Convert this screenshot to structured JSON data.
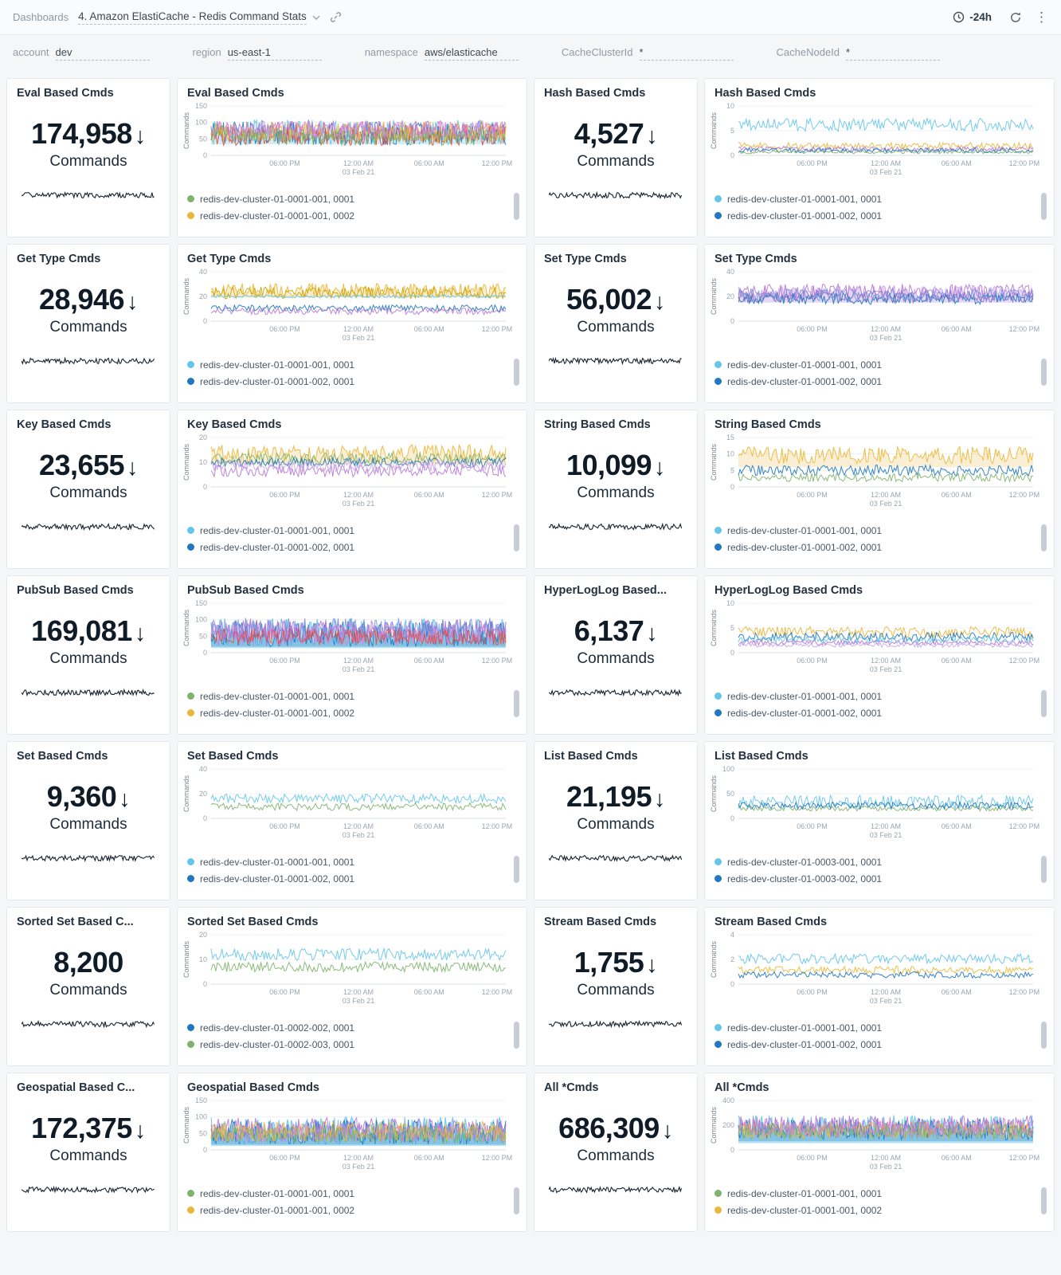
{
  "header": {
    "breadcrumb": "Dashboards",
    "title": "4. Amazon ElastiCache - Redis Command Stats",
    "time_range": "-24h",
    "icons": [
      "chevron-down",
      "link",
      "clock",
      "refresh",
      "kebab-menu"
    ]
  },
  "filters": [
    {
      "label": "account",
      "value": "dev"
    },
    {
      "label": "region",
      "value": "us-east-1"
    },
    {
      "label": "namespace",
      "value": "aws/elasticache"
    },
    {
      "label": "CacheClusterId",
      "value": "*"
    },
    {
      "label": "CacheNodeId",
      "value": "*"
    }
  ],
  "palette": {
    "green": "#7EB26D",
    "yellow": "#EAB839",
    "darkyellow": "#CCA300",
    "lightblue": "#65C5EA",
    "blue": "#1F78C1",
    "purple": "#B877D9",
    "darkpurple": "#8E6BBF",
    "lavender": "#C7A8E8",
    "pink": "#D683CE",
    "periwinkle": "#7B93DB",
    "red": "#E24D42",
    "spark": "#16222E"
  },
  "xticks": [
    {
      "label": "06:00 PM",
      "pos": 0.25
    },
    {
      "label": "12:00 AM",
      "sub": "03 Feb 21",
      "pos": 0.5
    },
    {
      "label": "06:00 AM",
      "pos": 0.74
    },
    {
      "label": "12:00 PM",
      "pos": 0.97
    }
  ],
  "panels": [
    {
      "type": "stat",
      "title": "Eval Based Cmds",
      "value": "174,958",
      "arrow": true,
      "unit": "Commands"
    },
    {
      "type": "chart",
      "title": "Eval Based Cmds",
      "ylabel": "Commands",
      "yticks": [
        0,
        50,
        100,
        150
      ],
      "ymax": 150,
      "dense": true,
      "legend": [
        {
          "color": "green",
          "label": "redis-dev-cluster-01-0001-001, 0001"
        },
        {
          "color": "yellow",
          "label": "redis-dev-cluster-01-0001-001, 0002"
        }
      ],
      "series": [
        {
          "color": "lightblue",
          "base": 70,
          "amp": 38,
          "fillTo": 34,
          "fillOpacity": 0.3
        },
        {
          "color": "blue",
          "base": 66,
          "amp": 36
        },
        {
          "color": "purple",
          "base": 74,
          "amp": 32
        },
        {
          "color": "red",
          "base": 60,
          "amp": 30
        },
        {
          "color": "yellow",
          "base": 70,
          "amp": 32
        },
        {
          "color": "green",
          "base": 56,
          "amp": 26
        },
        {
          "color": "pink",
          "base": 80,
          "amp": 26
        }
      ]
    },
    {
      "type": "stat",
      "title": "Hash Based Cmds",
      "value": "4,527",
      "arrow": true,
      "unit": "Commands"
    },
    {
      "type": "chart",
      "title": "Hash Based Cmds",
      "ylabel": "Commands",
      "yticks": [
        0,
        5,
        10
      ],
      "ymax": 10,
      "legend": [
        {
          "color": "lightblue",
          "label": "redis-dev-cluster-01-0001-001, 0001"
        },
        {
          "color": "blue",
          "label": "redis-dev-cluster-01-0001-002, 0001"
        }
      ],
      "series": [
        {
          "color": "lightblue",
          "base": 6.2,
          "amp": 1.3
        },
        {
          "color": "yellow",
          "base": 1.9,
          "amp": 0.7
        },
        {
          "color": "purple",
          "base": 1.3,
          "amp": 0.5
        },
        {
          "color": "blue",
          "base": 1.0,
          "amp": 0.5
        },
        {
          "color": "green",
          "base": 0.7,
          "amp": 0.35
        }
      ]
    },
    {
      "type": "stat",
      "title": "Get Type Cmds",
      "value": "28,946",
      "arrow": true,
      "unit": "Commands"
    },
    {
      "type": "chart",
      "title": "Get Type Cmds",
      "ylabel": "Commands",
      "yticks": [
        0,
        20,
        40
      ],
      "ymax": 40,
      "legend": [
        {
          "color": "lightblue",
          "label": "redis-dev-cluster-01-0001-001, 0001"
        },
        {
          "color": "blue",
          "label": "redis-dev-cluster-01-0001-002, 0001"
        }
      ],
      "series": [
        {
          "color": "yellow",
          "base": 25,
          "amp": 5.5,
          "fillTo": 19,
          "fillOpacity": 0.25
        },
        {
          "color": "darkyellow",
          "base": 23,
          "amp": 5
        },
        {
          "color": "lightblue",
          "base": 20,
          "amp": 1.2
        },
        {
          "color": "blue",
          "base": 10.5,
          "amp": 2.6
        },
        {
          "color": "purple",
          "base": 8,
          "amp": 2.6
        }
      ]
    },
    {
      "type": "stat",
      "title": "Set Type Cmds",
      "value": "56,002",
      "arrow": true,
      "unit": "Commands"
    },
    {
      "type": "chart",
      "title": "Set Type Cmds",
      "ylabel": "Commands",
      "yticks": [
        0,
        20,
        40
      ],
      "ymax": 40,
      "legend": [
        {
          "color": "lightblue",
          "label": "redis-dev-cluster-01-0001-001, 0001"
        },
        {
          "color": "blue",
          "label": "redis-dev-cluster-01-0001-002, 0001"
        }
      ],
      "series": [
        {
          "color": "lavender",
          "base": 23,
          "amp": 6,
          "fillTo": 15,
          "fillOpacity": 0.45
        },
        {
          "color": "purple",
          "base": 24,
          "amp": 6
        },
        {
          "color": "darkpurple",
          "base": 20,
          "amp": 5
        },
        {
          "color": "blue",
          "base": 18,
          "amp": 4.5
        },
        {
          "color": "periwinkle",
          "base": 21,
          "amp": 5
        }
      ]
    },
    {
      "type": "stat",
      "title": "Key Based Cmds",
      "value": "23,655",
      "arrow": true,
      "unit": "Commands"
    },
    {
      "type": "chart",
      "title": "Key Based Cmds",
      "ylabel": "Commands",
      "yticks": [
        0,
        10,
        20
      ],
      "ymax": 20,
      "legend": [
        {
          "color": "lightblue",
          "label": "redis-dev-cluster-01-0001-001, 0001"
        },
        {
          "color": "blue",
          "label": "redis-dev-cluster-01-0001-002, 0001"
        }
      ],
      "series": [
        {
          "color": "yellow",
          "base": 13.5,
          "amp": 3.6,
          "fillTo": 9,
          "fillOpacity": 0.22
        },
        {
          "color": "green",
          "base": 11.5,
          "amp": 2.2
        },
        {
          "color": "blue",
          "base": 10,
          "amp": 1.8
        },
        {
          "color": "purple",
          "base": 6.6,
          "amp": 2.6
        },
        {
          "color": "lavender",
          "base": 8.5,
          "amp": 2.2
        }
      ]
    },
    {
      "type": "stat",
      "title": "String Based Cmds",
      "value": "10,099",
      "arrow": true,
      "unit": "Commands"
    },
    {
      "type": "chart",
      "title": "String Based Cmds",
      "ylabel": "Commands",
      "yticks": [
        0,
        5,
        10,
        15
      ],
      "ymax": 15,
      "legend": [
        {
          "color": "lightblue",
          "label": "redis-dev-cluster-01-0001-001, 0001"
        },
        {
          "color": "blue",
          "label": "redis-dev-cluster-01-0001-002, 0001"
        }
      ],
      "series": [
        {
          "color": "yellow",
          "base": 9.6,
          "amp": 2.6,
          "fillTo": 6,
          "fillOpacity": 0.22
        },
        {
          "color": "blue",
          "base": 5,
          "amp": 1.6
        },
        {
          "color": "green",
          "base": 2.9,
          "amp": 1.3
        }
      ]
    },
    {
      "type": "stat",
      "title": "PubSub Based Cmds",
      "value": "169,081",
      "arrow": true,
      "unit": "Commands"
    },
    {
      "type": "chart",
      "title": "PubSub Based Cmds",
      "ylabel": "Commands",
      "yticks": [
        0,
        50,
        100,
        150
      ],
      "ymax": 150,
      "dense": true,
      "legend": [
        {
          "color": "green",
          "label": "redis-dev-cluster-01-0001-001, 0001"
        },
        {
          "color": "yellow",
          "label": "redis-dev-cluster-01-0001-001, 0002"
        }
      ],
      "series": [
        {
          "color": "lightblue",
          "base": 62,
          "amp": 42,
          "fillTo": 14,
          "fillOpacity": 0.5
        },
        {
          "color": "blue",
          "base": 58,
          "amp": 40,
          "fillTo": 18,
          "fillOpacity": 0.3
        },
        {
          "color": "periwinkle",
          "base": 72,
          "amp": 34
        },
        {
          "color": "purple",
          "base": 66,
          "amp": 34
        },
        {
          "color": "pink",
          "base": 52,
          "amp": 30
        },
        {
          "color": "red",
          "base": 48,
          "amp": 24
        }
      ]
    },
    {
      "type": "stat",
      "title": "HyperLogLog Based...",
      "value": "6,137",
      "arrow": true,
      "unit": "Commands"
    },
    {
      "type": "chart",
      "title": "HyperLogLog Based Cmds",
      "ylabel": "Commands",
      "yticks": [
        0,
        5,
        10
      ],
      "ymax": 10,
      "legend": [
        {
          "color": "lightblue",
          "label": "redis-dev-cluster-01-0001-001, 0001"
        },
        {
          "color": "blue",
          "label": "redis-dev-cluster-01-0001-002, 0001"
        }
      ],
      "series": [
        {
          "color": "yellow",
          "base": 4.2,
          "amp": 1.1
        },
        {
          "color": "blue",
          "base": 3.2,
          "amp": 0.9
        },
        {
          "color": "lightblue",
          "base": 2.6,
          "amp": 0.7
        },
        {
          "color": "purple",
          "base": 2.0,
          "amp": 0.5
        },
        {
          "color": "lavender",
          "base": 1.5,
          "amp": 0.45
        }
      ]
    },
    {
      "type": "stat",
      "title": "Set Based Cmds",
      "value": "9,360",
      "arrow": true,
      "unit": "Commands"
    },
    {
      "type": "chart",
      "title": "Set Based Cmds",
      "ylabel": "Commands",
      "yticks": [
        0,
        20,
        40
      ],
      "ymax": 40,
      "legend": [
        {
          "color": "lightblue",
          "label": "redis-dev-cluster-01-0001-001, 0001"
        },
        {
          "color": "blue",
          "label": "redis-dev-cluster-01-0001-002, 0001"
        }
      ],
      "series": [
        {
          "color": "lightblue",
          "base": 16,
          "amp": 3.8
        },
        {
          "color": "green",
          "base": 9.5,
          "amp": 3.0
        }
      ]
    },
    {
      "type": "stat",
      "title": "List Based Cmds",
      "value": "21,195",
      "arrow": true,
      "unit": "Commands"
    },
    {
      "type": "chart",
      "title": "List Based Cmds",
      "ylabel": "Commands",
      "yticks": [
        0,
        50,
        100
      ],
      "ymax": 100,
      "legend": [
        {
          "color": "lightblue",
          "label": "redis-dev-cluster-01-0003-001, 0001"
        },
        {
          "color": "blue",
          "label": "redis-dev-cluster-01-0003-002, 0001"
        }
      ],
      "series": [
        {
          "color": "lightblue",
          "base": 33,
          "amp": 14
        },
        {
          "color": "green",
          "base": 20,
          "amp": 5
        },
        {
          "color": "blue",
          "base": 26,
          "amp": 7
        }
      ]
    },
    {
      "type": "stat",
      "title": "Sorted Set Based C...",
      "value": "8,200",
      "arrow": false,
      "unit": "Commands"
    },
    {
      "type": "chart",
      "title": "Sorted Set Based Cmds",
      "ylabel": "Commands",
      "yticks": [
        0,
        10,
        20
      ],
      "ymax": 20,
      "legend": [
        {
          "color": "blue",
          "label": "redis-dev-cluster-01-0002-002, 0001"
        },
        {
          "color": "green",
          "label": "redis-dev-cluster-01-0002-003, 0001"
        }
      ],
      "series": [
        {
          "color": "lightblue",
          "base": 12,
          "amp": 2.4
        },
        {
          "color": "green",
          "base": 7,
          "amp": 2.0
        }
      ]
    },
    {
      "type": "stat",
      "title": "Stream Based Cmds",
      "value": "1,755",
      "arrow": true,
      "unit": "Commands"
    },
    {
      "type": "chart",
      "title": "Stream Based Cmds",
      "ylabel": "Commands",
      "yticks": [
        0,
        2,
        4
      ],
      "ymax": 4,
      "legend": [
        {
          "color": "lightblue",
          "label": "redis-dev-cluster-01-0001-001, 0001"
        },
        {
          "color": "blue",
          "label": "redis-dev-cluster-01-0001-002, 0001"
        }
      ],
      "series": [
        {
          "color": "lightblue",
          "base": 2.05,
          "amp": 0.4
        },
        {
          "color": "yellow",
          "base": 1.15,
          "amp": 0.3
        },
        {
          "color": "blue",
          "base": 0.75,
          "amp": 0.25
        }
      ]
    },
    {
      "type": "stat",
      "title": "Geospatial Based C...",
      "value": "172,375",
      "arrow": true,
      "unit": "Commands"
    },
    {
      "type": "chart",
      "title": "Geospatial Based Cmds",
      "ylabel": "Commands",
      "yticks": [
        0,
        50,
        100,
        150
      ],
      "ymax": 150,
      "dense": true,
      "legend": [
        {
          "color": "green",
          "label": "redis-dev-cluster-01-0001-001, 0001"
        },
        {
          "color": "yellow",
          "label": "redis-dev-cluster-01-0001-001, 0002"
        }
      ],
      "series": [
        {
          "color": "lightblue",
          "base": 58,
          "amp": 42,
          "fillTo": 12,
          "fillOpacity": 0.5
        },
        {
          "color": "blue",
          "base": 54,
          "amp": 38,
          "fillTo": 16,
          "fillOpacity": 0.3
        },
        {
          "color": "purple",
          "base": 64,
          "amp": 34
        },
        {
          "color": "pink",
          "base": 50,
          "amp": 30
        },
        {
          "color": "green",
          "base": 46,
          "amp": 26
        },
        {
          "color": "yellow",
          "base": 56,
          "amp": 30
        }
      ]
    },
    {
      "type": "stat",
      "title": "All *Cmds",
      "value": "686,309",
      "arrow": true,
      "unit": "Commands"
    },
    {
      "type": "chart",
      "title": "All *Cmds",
      "ylabel": "Commands",
      "yticks": [
        0,
        200,
        400
      ],
      "ymax": 400,
      "dense": true,
      "legend": [
        {
          "color": "green",
          "label": "redis-dev-cluster-01-0001-001, 0001"
        },
        {
          "color": "yellow",
          "label": "redis-dev-cluster-01-0001-001, 0002"
        }
      ],
      "series": [
        {
          "color": "lightblue",
          "base": 185,
          "amp": 95,
          "fillTo": 55,
          "fillOpacity": 0.5
        },
        {
          "color": "blue",
          "base": 165,
          "amp": 85,
          "fillTo": 70,
          "fillOpacity": 0.3
        },
        {
          "color": "purple",
          "base": 200,
          "amp": 80
        },
        {
          "color": "yellow",
          "base": 160,
          "amp": 72
        },
        {
          "color": "green",
          "base": 150,
          "amp": 60
        },
        {
          "color": "pink",
          "base": 175,
          "amp": 70
        }
      ]
    }
  ]
}
